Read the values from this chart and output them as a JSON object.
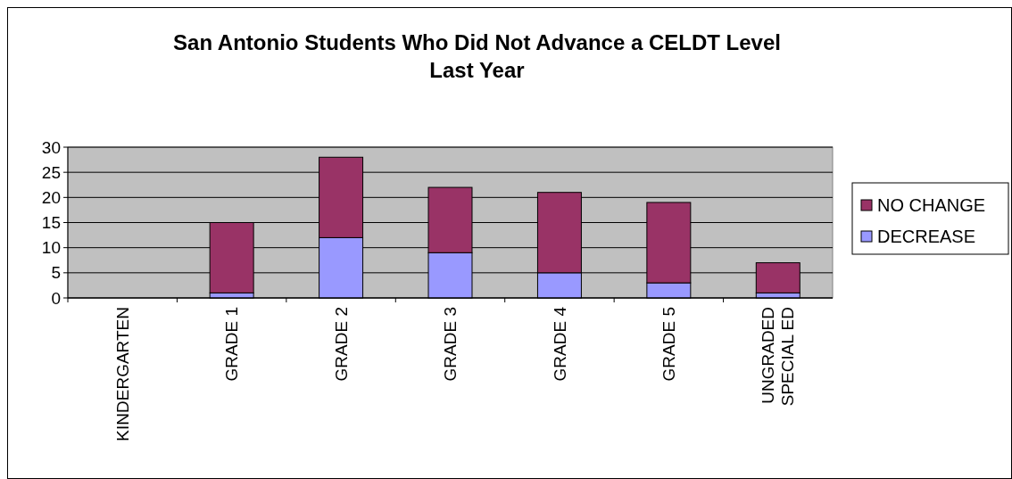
{
  "chart_data": {
    "type": "bar",
    "title": "San Antonio Students Who Did Not Advance a CELDT Level Last Year",
    "categories": [
      "KINDERGARTEN",
      "GRADE 1",
      "GRADE 2",
      "GRADE 3",
      "GRADE 4",
      "GRADE 5",
      "UNGRADED SPECIAL ED"
    ],
    "stacked": true,
    "series": [
      {
        "name": "DECREASE",
        "color": "#9999ff",
        "values": [
          0,
          1,
          12,
          9,
          5,
          3,
          1
        ]
      },
      {
        "name": "NO CHANGE",
        "color": "#993366",
        "values": [
          0,
          14,
          16,
          13,
          16,
          16,
          6
        ]
      }
    ],
    "ylim": [
      0,
      30
    ],
    "yticks": [
      0,
      5,
      10,
      15,
      20,
      25,
      30
    ],
    "grid": "y",
    "legend": "right"
  }
}
